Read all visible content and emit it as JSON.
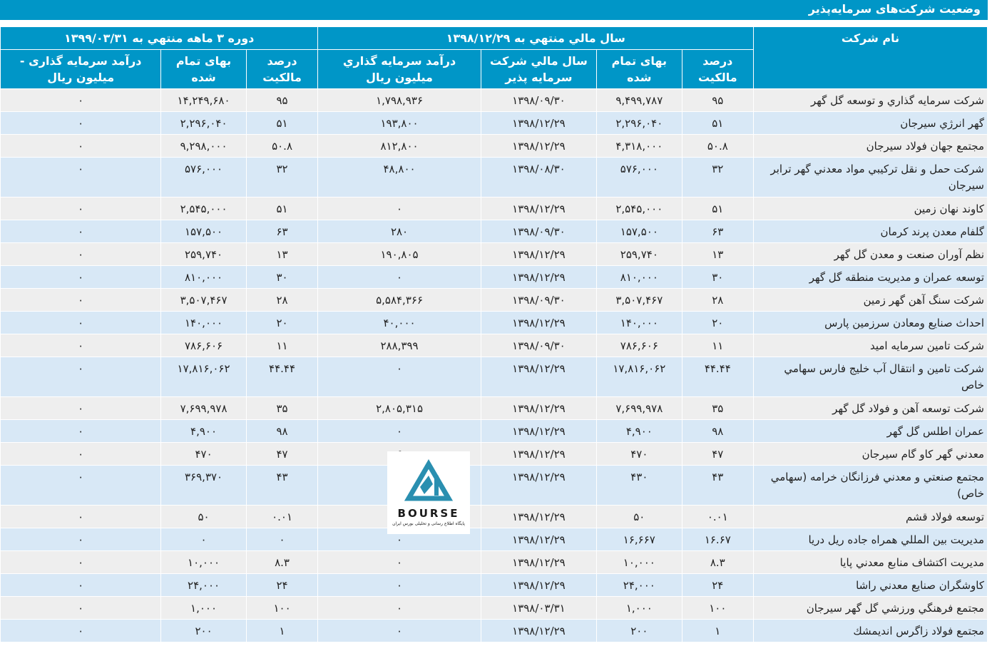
{
  "page": {
    "title": "وضعیت شرکت‌های سرمایه‌پذیر"
  },
  "headers": {
    "company_name": "نام شرکت",
    "fiscal_group": "سال مالي منتهي به ۱۳۹۸/۱۲/۲۹",
    "period_group": "دوره ۳ ماهه منتهي به ۱۳۹۹/۰۳/۳۱",
    "ownership_pct": "درصد مالكيت",
    "cost": "بهای تمام شده",
    "investee_fiscal_year": "سال مالي شركت سرمايه پذير",
    "investment_income": "درآمد سرمايه گذاري میلیون ریال",
    "ownership_pct_2": "درصد مالكيت",
    "cost_2": "بهای تمام شده",
    "investment_income_2": "درآمد سرمایه گذاری - میلیون ریال"
  },
  "colors": {
    "header_bg": "#0096c7",
    "row_odd": "#eeeeee",
    "row_even": "#d8e8f6"
  },
  "rows": [
    {
      "name": "شركت سرمايه گذاري و توسعه گل گهر",
      "pct": "۹۵",
      "cost": "۹,۴۹۹,۷۸۷",
      "fy": "۱۳۹۸/۰۹/۳۰",
      "income": "۱,۷۹۸,۹۳۶",
      "pct2": "۹۵",
      "cost2": "۱۴,۲۴۹,۶۸۰",
      "income2": "۰"
    },
    {
      "name": "گهر انرژي سيرجان",
      "pct": "۵۱",
      "cost": "۲,۲۹۶,۰۴۰",
      "fy": "۱۳۹۸/۱۲/۲۹",
      "income": "۱۹۳,۸۰۰",
      "pct2": "۵۱",
      "cost2": "۲,۲۹۶,۰۴۰",
      "income2": "۰"
    },
    {
      "name": "مجتمع جهان فولاد سيرجان",
      "pct": "۵۰.۸",
      "cost": "۴,۳۱۸,۰۰۰",
      "fy": "۱۳۹۸/۱۲/۲۹",
      "income": "۸۱۲,۸۰۰",
      "pct2": "۵۰.۸",
      "cost2": "۹,۲۹۸,۰۰۰",
      "income2": "۰"
    },
    {
      "name": "شركت حمل و نقل تركيبي مواد معدني گهر ترابر سيرجان",
      "pct": "۳۲",
      "cost": "۵۷۶,۰۰۰",
      "fy": "۱۳۹۸/۰۸/۳۰",
      "income": "۴۸,۸۰۰",
      "pct2": "۳۲",
      "cost2": "۵۷۶,۰۰۰",
      "income2": "۰"
    },
    {
      "name": "كاوند نهان زمين",
      "pct": "۵۱",
      "cost": "۲,۵۴۵,۰۰۰",
      "fy": "۱۳۹۸/۱۲/۲۹",
      "income": "۰",
      "pct2": "۵۱",
      "cost2": "۲,۵۴۵,۰۰۰",
      "income2": "۰"
    },
    {
      "name": "گلفام معدن پرند كرمان",
      "pct": "۶۳",
      "cost": "۱۵۷,۵۰۰",
      "fy": "۱۳۹۸/۰۹/۳۰",
      "income": "۲۸۰",
      "pct2": "۶۳",
      "cost2": "۱۵۷,۵۰۰",
      "income2": "۰"
    },
    {
      "name": "نظم آوران صنعت و معدن گل گهر",
      "pct": "۱۳",
      "cost": "۲۵۹,۷۴۰",
      "fy": "۱۳۹۸/۱۲/۲۹",
      "income": "۱۹۰,۸۰۵",
      "pct2": "۱۳",
      "cost2": "۲۵۹,۷۴۰",
      "income2": "۰"
    },
    {
      "name": "توسعه عمران و مديريت منطقه گل گهر",
      "pct": "۳۰",
      "cost": "۸۱۰,۰۰۰",
      "fy": "۱۳۹۸/۱۲/۲۹",
      "income": "۰",
      "pct2": "۳۰",
      "cost2": "۸۱۰,۰۰۰",
      "income2": "۰"
    },
    {
      "name": "شركت سنگ آهن گهر زمين",
      "pct": "۲۸",
      "cost": "۳,۵۰۷,۴۶۷",
      "fy": "۱۳۹۸/۰۹/۳۰",
      "income": "۵,۵۸۴,۳۶۶",
      "pct2": "۲۸",
      "cost2": "۳,۵۰۷,۴۶۷",
      "income2": "۰"
    },
    {
      "name": "احداث صنايع ومعادن سرزمين پارس",
      "pct": "۲۰",
      "cost": "۱۴۰,۰۰۰",
      "fy": "۱۳۹۸/۱۲/۲۹",
      "income": "۴۰,۰۰۰",
      "pct2": "۲۰",
      "cost2": "۱۴۰,۰۰۰",
      "income2": "۰"
    },
    {
      "name": "شركت تامين سرمايه اميد",
      "pct": "۱۱",
      "cost": "۷۸۶,۶۰۶",
      "fy": "۱۳۹۸/۰۹/۳۰",
      "income": "۲۸۸,۳۹۹",
      "pct2": "۱۱",
      "cost2": "۷۸۶,۶۰۶",
      "income2": "۰"
    },
    {
      "name": "شركت تامين و انتقال آب خليج فارس سهامي خاص",
      "pct": "۴۴.۴۴",
      "cost": "۱۷,۸۱۶,۰۶۲",
      "fy": "۱۳۹۸/۱۲/۲۹",
      "income": "۰",
      "pct2": "۴۴.۴۴",
      "cost2": "۱۷,۸۱۶,۰۶۲",
      "income2": "۰"
    },
    {
      "name": "شركت توسعه آهن و فولاد گل گهر",
      "pct": "۳۵",
      "cost": "۷,۶۹۹,۹۷۸",
      "fy": "۱۳۹۸/۱۲/۲۹",
      "income": "۲,۸۰۵,۳۱۵",
      "pct2": "۳۵",
      "cost2": "۷,۶۹۹,۹۷۸",
      "income2": "۰"
    },
    {
      "name": "عمران اطلس گل گهر",
      "pct": "۹۸",
      "cost": "۴,۹۰۰",
      "fy": "۱۳۹۸/۱۲/۲۹",
      "income": "۰",
      "pct2": "۹۸",
      "cost2": "۴,۹۰۰",
      "income2": "۰"
    },
    {
      "name": "معدني گهر كاو گام سيرجان",
      "pct": "۴۷",
      "cost": "۴۷۰",
      "fy": "۱۳۹۸/۱۲/۲۹",
      "income": "۶",
      "pct2": "۴۷",
      "cost2": "۴۷۰",
      "income2": "۰"
    },
    {
      "name": "مجتمع صنعتي و معدني فرزانگان خرامه (سهامي خاص)",
      "pct": "۴۳",
      "cost": "۴۳۰",
      "fy": "۱۳۹۸/۱۲/۲۹",
      "income": "",
      "pct2": "۴۳",
      "cost2": "۳۶۹,۳۷۰",
      "income2": "۰"
    },
    {
      "name": "توسعه فولاد قشم",
      "pct": "۰.۰۱",
      "cost": "۵۰",
      "fy": "۱۳۹۸/۱۲/۲۹",
      "income": "",
      "pct2": "۰.۰۱",
      "cost2": "۵۰",
      "income2": "۰"
    },
    {
      "name": "مديريت بين المللي همراه جاده ريل دريا",
      "pct": "۱۶.۶۷",
      "cost": "۱۶,۶۶۷",
      "fy": "۱۳۹۸/۱۲/۲۹",
      "income": "۰",
      "pct2": "۰",
      "cost2": "۰",
      "income2": "۰"
    },
    {
      "name": "مديريت اكتشاف منابع معدني پايا",
      "pct": "۸.۳",
      "cost": "۱۰,۰۰۰",
      "fy": "۱۳۹۸/۱۲/۲۹",
      "income": "۰",
      "pct2": "۸.۳",
      "cost2": "۱۰,۰۰۰",
      "income2": "۰"
    },
    {
      "name": "كاوشگران صنايع معدني راشا",
      "pct": "۲۴",
      "cost": "۲۴,۰۰۰",
      "fy": "۱۳۹۸/۱۲/۲۹",
      "income": "۰",
      "pct2": "۲۴",
      "cost2": "۲۴,۰۰۰",
      "income2": "۰"
    },
    {
      "name": "مجتمع فرهنگي ورزشي گل گهر سيرجان",
      "pct": "۱۰۰",
      "cost": "۱,۰۰۰",
      "fy": "۱۳۹۸/۰۳/۳۱",
      "income": "۰",
      "pct2": "۱۰۰",
      "cost2": "۱,۰۰۰",
      "income2": "۰"
    },
    {
      "name": "مجتمع فولاد زاگرس انديمشك",
      "pct": "۱",
      "cost": "۲۰۰",
      "fy": "۱۳۹۸/۱۲/۲۹",
      "income": "۰",
      "pct2": "۱",
      "cost2": "۲۰۰",
      "income2": "۰"
    }
  ],
  "logo": {
    "mark": "24",
    "brand": "BOURSE",
    "tagline": "پایگاه اطلاع رسانی و تحلیلی بورس ایران",
    "colors": {
      "mark": "#2a8fb0",
      "text": "#1a1a1a"
    }
  }
}
